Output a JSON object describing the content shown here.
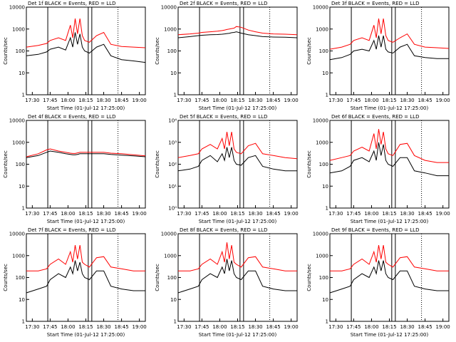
{
  "chart_data": [
    {
      "type": "line",
      "title": "Det 1f BLACK = Events, RED = LLD",
      "xlabel": "Start Time (01-Jul-12 17:25:00)",
      "ylabel": "Counts/sec",
      "ylog": true,
      "xlim": [
        "17:25",
        "19:05"
      ],
      "xticks": [
        "17:30",
        "17:45",
        "18:00",
        "18:15",
        "18:30",
        "18:45",
        "19:00"
      ],
      "ylim": [
        1,
        10000
      ],
      "yticks": [
        1,
        10,
        100,
        1000,
        10000
      ],
      "x": [
        "17:25",
        "17:35",
        "17:42",
        "17:45",
        "17:52",
        "17:58",
        "18:02",
        "18:04",
        "18:06",
        "18:08",
        "18:10",
        "18:12",
        "18:14",
        "18:18",
        "18:24",
        "18:30",
        "18:36",
        "18:45",
        "18:55",
        "19:05"
      ],
      "markers": [
        {
          "x": "17:43",
          "style": "solid"
        },
        {
          "x": "18:17",
          "style": "solid"
        },
        {
          "x": "18:20",
          "style": "solid"
        },
        {
          "x": "18:42",
          "style": "dotted"
        }
      ],
      "series": [
        {
          "color": "#000000",
          "values": [
            60,
            70,
            90,
            120,
            150,
            110,
            400,
            150,
            700,
            200,
            600,
            150,
            100,
            80,
            150,
            200,
            60,
            40,
            35,
            30
          ]
        },
        {
          "color": "#ff0000",
          "values": [
            150,
            180,
            220,
            300,
            400,
            300,
            1500,
            400,
            3000,
            600,
            3000,
            500,
            300,
            250,
            500,
            700,
            200,
            160,
            150,
            140
          ]
        }
      ]
    },
    {
      "type": "line",
      "title": "Det 2f BLACK = Events, RED = LLD",
      "xlabel": "Start Time (01-Jul-12 17:25:00)",
      "ylabel": "Counts/sec",
      "ylog": true,
      "xlim": [
        "17:25",
        "19:05"
      ],
      "xticks": [
        "17:30",
        "17:45",
        "18:00",
        "18:15",
        "18:30",
        "18:45",
        "19:00"
      ],
      "ylim": [
        1,
        10000
      ],
      "yticks": [
        1,
        10,
        100,
        1000,
        10000
      ],
      "x": [
        "17:25",
        "17:35",
        "17:42",
        "17:45",
        "17:52",
        "17:58",
        "18:02",
        "18:04",
        "18:06",
        "18:08",
        "18:10",
        "18:12",
        "18:14",
        "18:18",
        "18:24",
        "18:30",
        "18:36",
        "18:45",
        "18:55",
        "19:05"
      ],
      "markers": [
        {
          "x": "17:43",
          "style": "solid"
        },
        {
          "x": "18:17",
          "style": "solid"
        },
        {
          "x": "18:20",
          "style": "solid"
        },
        {
          "x": "18:42",
          "style": "dotted"
        }
      ],
      "series": [
        {
          "color": "#000000",
          "values": [
            400,
            450,
            500,
            520,
            550,
            560,
            580,
            600,
            620,
            640,
            680,
            700,
            750,
            650,
            550,
            500,
            450,
            430,
            420,
            400
          ]
        },
        {
          "color": "#ff0000",
          "values": [
            550,
            600,
            650,
            700,
            750,
            800,
            850,
            900,
            950,
            1000,
            1050,
            1100,
            1300,
            1200,
            900,
            750,
            650,
            600,
            580,
            550
          ]
        }
      ]
    },
    {
      "type": "line",
      "title": "Det 3f BLACK = Events, RED = LLD",
      "xlabel": "Start Time (01-Jul-12 17:25:00)",
      "ylabel": "Counts/sec",
      "ylog": true,
      "xlim": [
        "17:25",
        "19:05"
      ],
      "xticks": [
        "17:30",
        "17:45",
        "18:00",
        "18:15",
        "18:30",
        "18:45",
        "19:00"
      ],
      "ylim": [
        1,
        10000
      ],
      "yticks": [
        1,
        10,
        100,
        1000,
        10000
      ],
      "x": [
        "17:25",
        "17:35",
        "17:42",
        "17:45",
        "17:52",
        "17:58",
        "18:02",
        "18:04",
        "18:06",
        "18:08",
        "18:10",
        "18:12",
        "18:14",
        "18:18",
        "18:24",
        "18:30",
        "18:36",
        "18:45",
        "18:55",
        "19:05"
      ],
      "markers": [
        {
          "x": "17:43",
          "style": "solid"
        },
        {
          "x": "18:17",
          "style": "solid"
        },
        {
          "x": "18:20",
          "style": "solid"
        },
        {
          "x": "18:42",
          "style": "dotted"
        }
      ],
      "series": [
        {
          "color": "#000000",
          "values": [
            40,
            50,
            70,
            100,
            120,
            100,
            300,
            120,
            500,
            150,
            500,
            120,
            90,
            80,
            150,
            200,
            60,
            50,
            45,
            45
          ]
        },
        {
          "color": "#ff0000",
          "values": [
            120,
            150,
            200,
            300,
            400,
            300,
            1500,
            400,
            3000,
            600,
            3000,
            500,
            300,
            250,
            400,
            600,
            200,
            150,
            140,
            130
          ]
        }
      ]
    },
    {
      "type": "line",
      "title": "Det 4f BLACK = Events, RED = LLD",
      "xlabel": "Start Time (01-Jul-12 17:25:00)",
      "ylabel": "Counts/sec",
      "ylog": true,
      "xlim": [
        "17:25",
        "19:05"
      ],
      "xticks": [
        "17:30",
        "17:45",
        "18:00",
        "18:15",
        "18:30",
        "18:45",
        "19:00"
      ],
      "ylim": [
        1,
        10000
      ],
      "yticks": [
        1,
        10,
        100,
        1000,
        10000
      ],
      "x": [
        "17:25",
        "17:35",
        "17:42",
        "17:45",
        "17:52",
        "17:58",
        "18:02",
        "18:04",
        "18:06",
        "18:08",
        "18:10",
        "18:12",
        "18:14",
        "18:18",
        "18:24",
        "18:30",
        "18:36",
        "18:45",
        "18:55",
        "19:05"
      ],
      "markers": [
        {
          "x": "17:43",
          "style": "solid"
        },
        {
          "x": "18:17",
          "style": "solid"
        },
        {
          "x": "18:20",
          "style": "solid"
        },
        {
          "x": "18:42",
          "style": "dotted"
        }
      ],
      "series": [
        {
          "color": "#000000",
          "values": [
            200,
            250,
            350,
            400,
            350,
            300,
            280,
            270,
            270,
            280,
            300,
            300,
            300,
            300,
            300,
            300,
            280,
            260,
            240,
            220
          ]
        },
        {
          "color": "#ff0000",
          "values": [
            220,
            300,
            450,
            500,
            400,
            350,
            320,
            310,
            310,
            330,
            350,
            350,
            350,
            350,
            350,
            350,
            320,
            300,
            270,
            240
          ]
        }
      ]
    },
    {
      "type": "line",
      "title": "Det 5f BLACK = Events, RED = LLD",
      "xlabel": "Start Time (01-Jul-12 17:25:00)",
      "ylabel": "Counts/sec",
      "ylog": true,
      "xlim": [
        "17:25",
        "19:05"
      ],
      "xticks": [
        "17:30",
        "17:45",
        "18:00",
        "18:15",
        "18:30",
        "18:45",
        "19:00"
      ],
      "ylim": [
        1,
        10000
      ],
      "yticks": [
        {
          "value": 1,
          "label": "10⁰"
        },
        {
          "value": 10,
          "label": "10¹"
        },
        {
          "value": 100,
          "label": "10²"
        },
        {
          "value": 1000,
          "label": "10³"
        },
        {
          "value": 10000,
          "label": "10⁴"
        }
      ],
      "x": [
        "17:25",
        "17:35",
        "17:42",
        "17:45",
        "17:52",
        "17:58",
        "18:02",
        "18:04",
        "18:06",
        "18:08",
        "18:10",
        "18:12",
        "18:14",
        "18:18",
        "18:24",
        "18:30",
        "18:36",
        "18:45",
        "18:55",
        "19:05"
      ],
      "markers": [
        {
          "x": "17:43",
          "style": "solid"
        },
        {
          "x": "18:17",
          "style": "solid"
        },
        {
          "x": "18:20",
          "style": "solid"
        },
        {
          "x": "18:42",
          "style": "dotted"
        }
      ],
      "series": [
        {
          "color": "#000000",
          "values": [
            50,
            60,
            80,
            150,
            250,
            130,
            300,
            150,
            600,
            200,
            600,
            150,
            100,
            90,
            200,
            250,
            80,
            60,
            50,
            50
          ]
        },
        {
          "color": "#ff0000",
          "values": [
            200,
            250,
            300,
            500,
            800,
            500,
            1500,
            500,
            3000,
            700,
            3000,
            500,
            350,
            300,
            700,
            900,
            300,
            250,
            200,
            180
          ]
        }
      ]
    },
    {
      "type": "line",
      "title": "Det 6f BLACK = Events, RED = LLD",
      "xlabel": "Start Time (01-Jul-12 17:25:00)",
      "ylabel": "Counts/sec",
      "ylog": true,
      "xlim": [
        "17:25",
        "19:05"
      ],
      "xticks": [
        "17:30",
        "17:45",
        "18:00",
        "18:15",
        "18:30",
        "18:45",
        "19:00"
      ],
      "ylim": [
        1,
        10000
      ],
      "yticks": [
        1,
        10,
        100,
        1000,
        10000
      ],
      "x": [
        "17:25",
        "17:35",
        "17:42",
        "17:45",
        "17:52",
        "17:58",
        "18:02",
        "18:04",
        "18:06",
        "18:08",
        "18:10",
        "18:12",
        "18:14",
        "18:18",
        "18:24",
        "18:30",
        "18:36",
        "18:45",
        "18:55",
        "19:05"
      ],
      "markers": [
        {
          "x": "17:43",
          "style": "solid"
        },
        {
          "x": "18:17",
          "style": "solid"
        },
        {
          "x": "18:20",
          "style": "solid"
        },
        {
          "x": "18:42",
          "style": "dotted"
        }
      ],
      "series": [
        {
          "color": "#000000",
          "values": [
            40,
            50,
            80,
            150,
            200,
            130,
            400,
            150,
            1000,
            250,
            800,
            150,
            100,
            80,
            200,
            200,
            50,
            40,
            30,
            30
          ]
        },
        {
          "color": "#ff0000",
          "values": [
            150,
            200,
            250,
            400,
            600,
            400,
            2500,
            500,
            4000,
            800,
            3000,
            500,
            300,
            250,
            800,
            900,
            250,
            150,
            120,
            120
          ]
        }
      ]
    },
    {
      "type": "line",
      "title": "Det 7f BLACK = Events, RED = LLD",
      "xlabel": "Start Time (01-Jul-12 17:25:00)",
      "ylabel": "Counts/sec",
      "ylog": true,
      "xlim": [
        "17:25",
        "19:05"
      ],
      "xticks": [
        "17:30",
        "17:45",
        "18:00",
        "18:15",
        "18:30",
        "18:45",
        "19:00"
      ],
      "ylim": [
        1,
        10000
      ],
      "yticks": [
        1,
        10,
        100,
        1000,
        10000
      ],
      "x": [
        "17:25",
        "17:35",
        "17:42",
        "17:45",
        "17:52",
        "17:58",
        "18:02",
        "18:04",
        "18:06",
        "18:08",
        "18:10",
        "18:12",
        "18:14",
        "18:18",
        "18:24",
        "18:30",
        "18:36",
        "18:45",
        "18:55",
        "19:05"
      ],
      "markers": [
        {
          "x": "17:43",
          "style": "solid"
        },
        {
          "x": "18:17",
          "style": "solid"
        },
        {
          "x": "18:20",
          "style": "solid"
        },
        {
          "x": "18:42",
          "style": "dotted"
        }
      ],
      "series": [
        {
          "color": "#000000",
          "values": [
            20,
            30,
            40,
            80,
            150,
            100,
            300,
            150,
            600,
            200,
            500,
            150,
            100,
            80,
            200,
            200,
            40,
            30,
            25,
            25
          ]
        },
        {
          "color": "#ff0000",
          "values": [
            200,
            200,
            250,
            400,
            700,
            400,
            1500,
            500,
            3000,
            700,
            3000,
            500,
            400,
            300,
            800,
            900,
            300,
            250,
            200,
            200
          ]
        }
      ]
    },
    {
      "type": "line",
      "title": "Det 8f BLACK = Events, RED = LLD",
      "xlabel": "Start Time (01-Jul-12 17:25:00)",
      "ylabel": "Counts/sec",
      "ylog": true,
      "xlim": [
        "17:25",
        "19:05"
      ],
      "xticks": [
        "17:30",
        "17:45",
        "18:00",
        "18:15",
        "18:30",
        "18:45",
        "19:00"
      ],
      "ylim": [
        1,
        10000
      ],
      "yticks": [
        1,
        10,
        100,
        1000,
        10000
      ],
      "x": [
        "17:25",
        "17:35",
        "17:42",
        "17:45",
        "17:52",
        "17:58",
        "18:02",
        "18:04",
        "18:06",
        "18:08",
        "18:10",
        "18:12",
        "18:14",
        "18:18",
        "18:24",
        "18:30",
        "18:36",
        "18:45",
        "18:55",
        "19:05"
      ],
      "markers": [
        {
          "x": "17:43",
          "style": "solid"
        },
        {
          "x": "18:17",
          "style": "solid"
        },
        {
          "x": "18:20",
          "style": "solid"
        },
        {
          "x": "18:42",
          "style": "dotted"
        }
      ],
      "series": [
        {
          "color": "#000000",
          "values": [
            20,
            30,
            40,
            80,
            150,
            100,
            300,
            150,
            700,
            200,
            600,
            150,
            100,
            80,
            200,
            200,
            40,
            30,
            25,
            25
          ]
        },
        {
          "color": "#ff0000",
          "values": [
            200,
            200,
            250,
            400,
            700,
            400,
            1500,
            500,
            4000,
            700,
            3000,
            500,
            400,
            300,
            800,
            900,
            300,
            250,
            200,
            200
          ]
        }
      ]
    },
    {
      "type": "line",
      "title": "Det 9f BLACK = Events, RED = LLD",
      "xlabel": "Start Time (01-Jul-12 17:25:00)",
      "ylabel": "Counts/sec",
      "ylog": true,
      "xlim": [
        "17:25",
        "19:05"
      ],
      "xticks": [
        "17:30",
        "17:45",
        "18:00",
        "18:15",
        "18:30",
        "18:45",
        "19:00"
      ],
      "ylim": [
        1,
        10000
      ],
      "yticks": [
        1,
        10,
        100,
        1000,
        10000
      ],
      "x": [
        "17:25",
        "17:35",
        "17:42",
        "17:45",
        "17:52",
        "17:58",
        "18:02",
        "18:04",
        "18:06",
        "18:08",
        "18:10",
        "18:12",
        "18:14",
        "18:18",
        "18:24",
        "18:30",
        "18:36",
        "18:45",
        "18:55",
        "19:05"
      ],
      "markers": [
        {
          "x": "17:43",
          "style": "solid"
        },
        {
          "x": "18:17",
          "style": "solid"
        },
        {
          "x": "18:20",
          "style": "solid"
        },
        {
          "x": "18:42",
          "style": "dotted"
        }
      ],
      "series": [
        {
          "color": "#000000",
          "values": [
            20,
            30,
            40,
            80,
            150,
            100,
            300,
            150,
            600,
            200,
            600,
            150,
            100,
            80,
            200,
            200,
            40,
            30,
            25,
            25
          ]
        },
        {
          "color": "#ff0000",
          "values": [
            200,
            200,
            250,
            400,
            700,
            400,
            1500,
            500,
            3000,
            700,
            3000,
            500,
            400,
            300,
            800,
            900,
            300,
            250,
            200,
            200
          ]
        }
      ]
    }
  ]
}
